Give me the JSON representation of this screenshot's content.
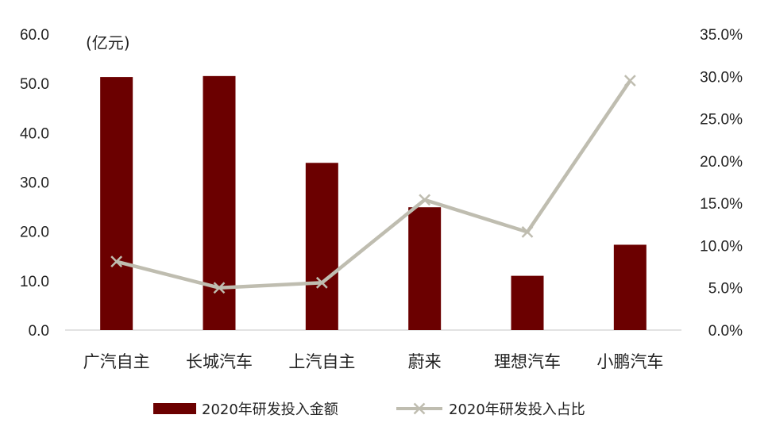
{
  "chart_data": {
    "type": "bar",
    "unit_label": "(亿元)",
    "categories": [
      "广汽自主",
      "长城汽车",
      "上汽自主",
      "蔚来",
      "理想汽车",
      "小鹏汽车"
    ],
    "series": [
      {
        "name": "2020年研发投入金额",
        "type": "bar",
        "axis": "left",
        "color": "#6b0000",
        "values": [
          51.3,
          51.5,
          33.9,
          24.9,
          11.0,
          17.3
        ]
      },
      {
        "name": "2020年研发投入占比",
        "type": "line",
        "axis": "right",
        "color": "#bfbdb0",
        "marker": "x",
        "values": [
          0.081,
          0.05,
          0.056,
          0.154,
          0.116,
          0.295
        ]
      }
    ],
    "y_left": {
      "min": 0,
      "max": 60,
      "ticks": [
        "0.0",
        "10.0",
        "20.0",
        "30.0",
        "40.0",
        "50.0",
        "60.0"
      ]
    },
    "y_right": {
      "min": 0,
      "max": 0.35,
      "ticks": [
        "0.0%",
        "5.0%",
        "10.0%",
        "15.0%",
        "20.0%",
        "25.0%",
        "30.0%",
        "35.0%"
      ]
    },
    "grid": false,
    "legend_position": "bottom"
  }
}
